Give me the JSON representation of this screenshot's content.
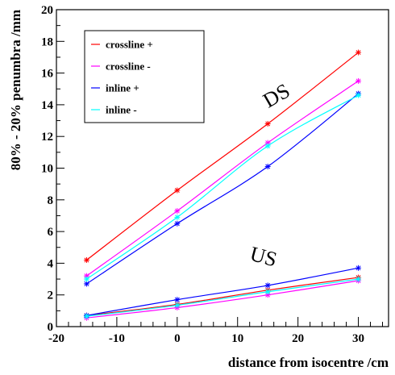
{
  "chart_data": {
    "type": "line",
    "title": "",
    "xlabel": "distance from isocentre /cm",
    "ylabel": "80% - 20% penumbra /mm",
    "xlim": [
      -20,
      35
    ],
    "ylim": [
      0,
      20
    ],
    "xticks": [
      -20,
      -10,
      0,
      10,
      20,
      30
    ],
    "yticks": [
      0,
      2,
      4,
      6,
      8,
      10,
      12,
      14,
      16,
      18,
      20
    ],
    "x": [
      -15,
      0,
      15,
      30
    ],
    "grid": false,
    "legend_position": "top-left",
    "series": [
      {
        "name": "crossline +",
        "color": "#ff0000",
        "group": "DS",
        "values": [
          4.2,
          8.6,
          12.8,
          17.3
        ]
      },
      {
        "name": "crossline -",
        "color": "#ff00ff",
        "group": "DS",
        "values": [
          3.2,
          7.3,
          11.6,
          15.5
        ]
      },
      {
        "name": "inline +",
        "color": "#0000ff",
        "group": "DS",
        "values": [
          2.7,
          6.5,
          10.1,
          14.7
        ]
      },
      {
        "name": "inline -",
        "color": "#00ffff",
        "group": "DS",
        "values": [
          3.0,
          6.9,
          11.4,
          14.6
        ]
      },
      {
        "name": "crossline +",
        "color": "#ff0000",
        "group": "US",
        "values": [
          0.7,
          1.4,
          2.3,
          3.1
        ]
      },
      {
        "name": "crossline -",
        "color": "#ff00ff",
        "group": "US",
        "values": [
          0.55,
          1.2,
          2.0,
          2.9
        ]
      },
      {
        "name": "inline +",
        "color": "#0000ff",
        "group": "US",
        "values": [
          0.7,
          1.7,
          2.6,
          3.7
        ]
      },
      {
        "name": "inline -",
        "color": "#00ffff",
        "group": "US",
        "values": [
          0.65,
          1.35,
          2.2,
          3.0
        ]
      }
    ],
    "legend": [
      {
        "label": "crossline +",
        "color": "#ff0000"
      },
      {
        "label": "crossline -",
        "color": "#ff00ff"
      },
      {
        "label": "inline +",
        "color": "#0000ff"
      },
      {
        "label": "inline -",
        "color": "#00ffff"
      }
    ],
    "annotations": [
      {
        "text": "DS",
        "x": 17,
        "y": 14.2,
        "rotate": -30
      },
      {
        "text": "US",
        "x": 14,
        "y": 4.0,
        "rotate": 15
      }
    ]
  }
}
